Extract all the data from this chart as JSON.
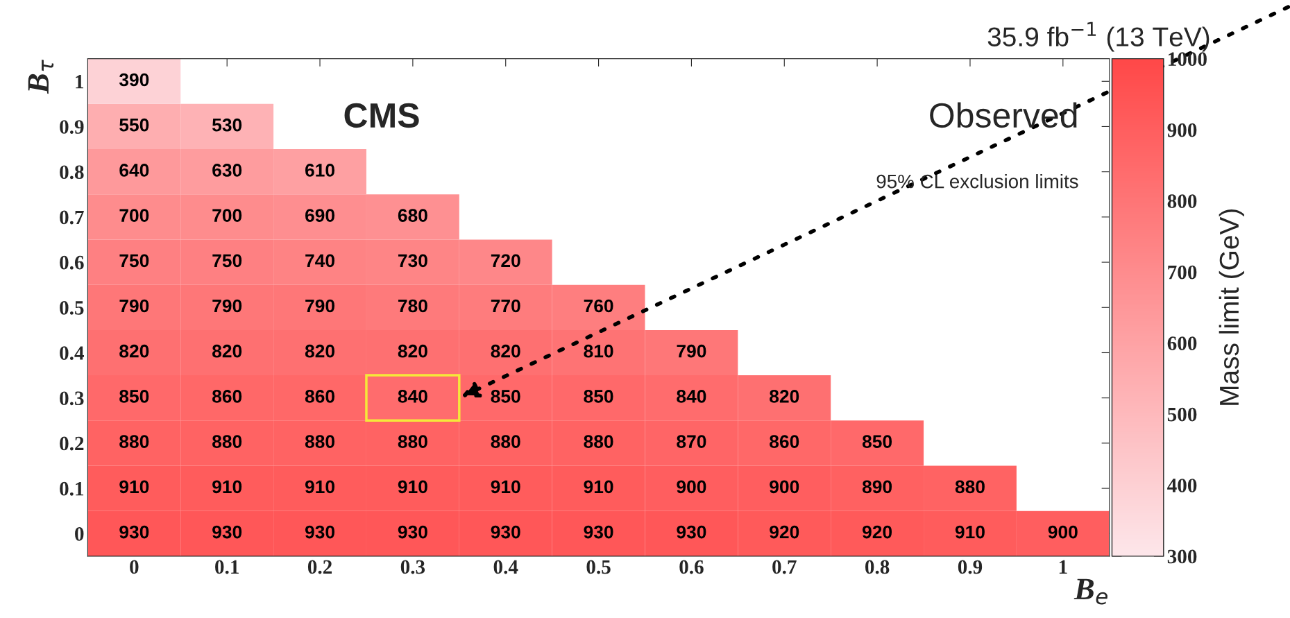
{
  "chart_data": {
    "type": "heatmap",
    "title": "35.9 fb$^{−1}$ (13 TeV)",
    "xlabel": "B$_{e}$",
    "ylabel": "B$_{τ}$",
    "clabel": "Mass limit (GeV)",
    "annotations": [
      "CMS",
      "Observed",
      "95% CL exclusion limits"
    ],
    "categories": [
      "0",
      "0.1",
      "0.2",
      "0.3",
      "0.4",
      "0.5",
      "0.6",
      "0.7",
      "0.8",
      "0.9",
      "1"
    ],
    "y_categories": [
      "1",
      "0.9",
      "0.8",
      "0.7",
      "0.6",
      "0.5",
      "0.4",
      "0.3",
      "0.2",
      "0.1",
      "0"
    ],
    "cells": [
      [
        390,
        null,
        null,
        null,
        null,
        null,
        null,
        null,
        null,
        null,
        null
      ],
      [
        550,
        530,
        null,
        null,
        null,
        null,
        null,
        null,
        null,
        null,
        null
      ],
      [
        640,
        630,
        610,
        null,
        null,
        null,
        null,
        null,
        null,
        null,
        null
      ],
      [
        700,
        700,
        690,
        680,
        null,
        null,
        null,
        null,
        null,
        null,
        null
      ],
      [
        750,
        750,
        740,
        730,
        720,
        null,
        null,
        null,
        null,
        null,
        null
      ],
      [
        790,
        790,
        790,
        780,
        770,
        760,
        null,
        null,
        null,
        null,
        null
      ],
      [
        820,
        820,
        820,
        820,
        820,
        810,
        790,
        null,
        null,
        null,
        null
      ],
      [
        850,
        860,
        860,
        840,
        850,
        850,
        840,
        820,
        null,
        null,
        null
      ],
      [
        880,
        880,
        880,
        880,
        880,
        880,
        870,
        860,
        850,
        null,
        null
      ],
      [
        910,
        910,
        910,
        910,
        910,
        910,
        900,
        900,
        890,
        880,
        null
      ],
      [
        930,
        930,
        930,
        930,
        930,
        930,
        930,
        920,
        920,
        910,
        900
      ]
    ],
    "data_labels": true,
    "clim": [
      300,
      1000
    ],
    "cticks": [
      300,
      400,
      500,
      600,
      700,
      800,
      900,
      1000
    ],
    "grid": false,
    "legend": false
  }
}
